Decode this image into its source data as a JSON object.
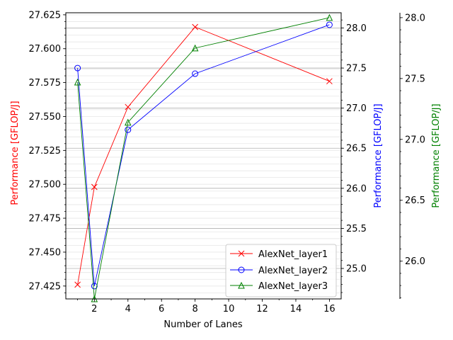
{
  "chart_data": {
    "type": "line",
    "xlabel": "Number of Lanes",
    "x": [
      1,
      2,
      4,
      8,
      16
    ],
    "xlim": [
      0.3,
      16.7
    ],
    "xticks": [
      2,
      4,
      6,
      8,
      10,
      12,
      14,
      16
    ],
    "grid": true,
    "legend_position": "lower-right",
    "series": [
      {
        "name": "AlexNet_layer1",
        "axis": "left",
        "color": "#ff0000",
        "marker": "x",
        "values": [
          27.426,
          27.498,
          27.557,
          27.616,
          27.576
        ]
      },
      {
        "name": "AlexNet_layer2",
        "axis": "right1",
        "color": "#0000ff",
        "marker": "o",
        "values": [
          27.5,
          24.78,
          26.73,
          27.43,
          28.04
        ]
      },
      {
        "name": "AlexNet_layer3",
        "axis": "right2",
        "color": "#008000",
        "marker": "^",
        "values": [
          27.47,
          25.69,
          27.14,
          27.75,
          28.0
        ]
      }
    ],
    "axes": {
      "left": {
        "label": "Performance [GFLOP/J]",
        "color": "#ff0000",
        "ylim": [
          27.4155,
          27.6265
        ],
        "ticks": [
          "27.425",
          "27.450",
          "27.475",
          "27.500",
          "27.525",
          "27.550",
          "27.575",
          "27.600",
          "27.625"
        ]
      },
      "right1": {
        "label": "Performance [GFLOP/J]",
        "color": "#0000ff",
        "ylim": [
          24.62,
          28.19
        ],
        "ticks": [
          "25.0",
          "25.5",
          "26.0",
          "26.5",
          "27.0",
          "27.5",
          "28.0"
        ]
      },
      "right2": {
        "label": "Performance [GFLOP/J]",
        "color": "#008000",
        "ylim": [
          25.69,
          28.04
        ],
        "ticks": [
          "26.0",
          "26.5",
          "27.0",
          "27.5",
          "28.0"
        ]
      }
    }
  }
}
